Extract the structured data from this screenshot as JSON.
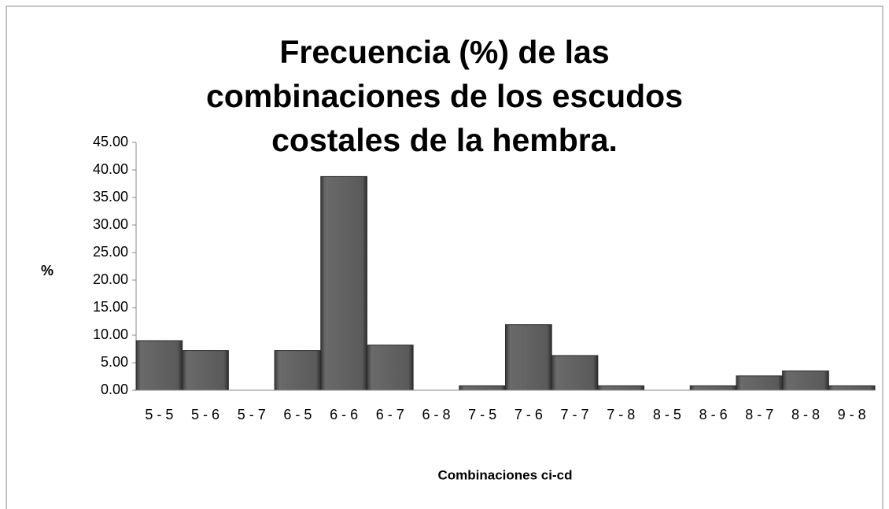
{
  "chart_data": {
    "type": "bar",
    "title": "Frecuencia (%) de las combinaciones de los escudos costales de la hembra.",
    "x_label": "Combinaciones ci-cd",
    "y_label": "%",
    "categories": [
      "5 - 5",
      "5 - 6",
      "5 - 7",
      "6 - 5",
      "6 - 6",
      "6 - 7",
      "6 - 8",
      "7 - 5",
      "7 - 6",
      "7 - 7",
      "7 - 8",
      "8 - 5",
      "8 - 6",
      "8 - 7",
      "8 - 8",
      "9 - 8"
    ],
    "values": [
      9.0,
      7.2,
      0,
      7.2,
      38.8,
      8.2,
      0,
      0.8,
      11.9,
      6.3,
      0.8,
      0,
      0.8,
      2.6,
      3.5,
      0.8
    ],
    "color": "#5a5a5a",
    "ylim": [
      0,
      45
    ],
    "yticks": [
      {
        "value": 0,
        "label": "0.00"
      },
      {
        "value": 5,
        "label": "5.00"
      },
      {
        "value": 10,
        "label": "10.00"
      },
      {
        "value": 15,
        "label": "15.00"
      },
      {
        "value": 20,
        "label": "20.00"
      },
      {
        "value": 25,
        "label": "25.00"
      },
      {
        "value": 30,
        "label": "30.00"
      },
      {
        "value": 35,
        "label": "35.00"
      },
      {
        "value": 40,
        "label": "40.00"
      },
      {
        "value": 45,
        "label": "45.00"
      }
    ],
    "grid": false
  }
}
